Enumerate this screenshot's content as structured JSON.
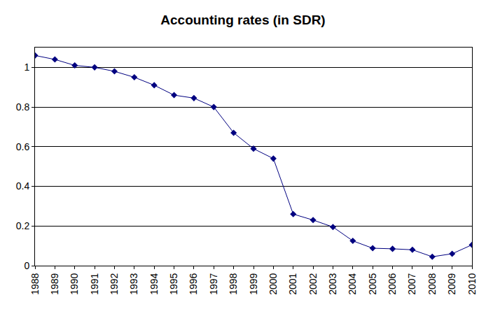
{
  "chart_data": {
    "type": "line",
    "title": "Accounting rates (in SDR)",
    "categories": [
      "1988",
      "1989",
      "1990",
      "1991",
      "1992",
      "1993",
      "1994",
      "1995",
      "1996",
      "1997",
      "1998",
      "1999",
      "2000",
      "2001",
      "2002",
      "2003",
      "2004",
      "2005",
      "2006",
      "2007",
      "2008",
      "2009",
      "2010"
    ],
    "values": [
      1.06,
      1.04,
      1.01,
      1.0,
      0.98,
      0.95,
      0.91,
      0.86,
      0.845,
      0.8,
      0.67,
      0.59,
      0.54,
      0.26,
      0.23,
      0.195,
      0.125,
      0.088,
      0.085,
      0.08,
      0.045,
      0.06,
      0.105
    ],
    "color": "#000080",
    "marker": "diamond",
    "ylim": [
      0,
      1.1
    ],
    "yticks": [
      0,
      0.2,
      0.4,
      0.6,
      0.8,
      1
    ],
    "grid": true
  }
}
